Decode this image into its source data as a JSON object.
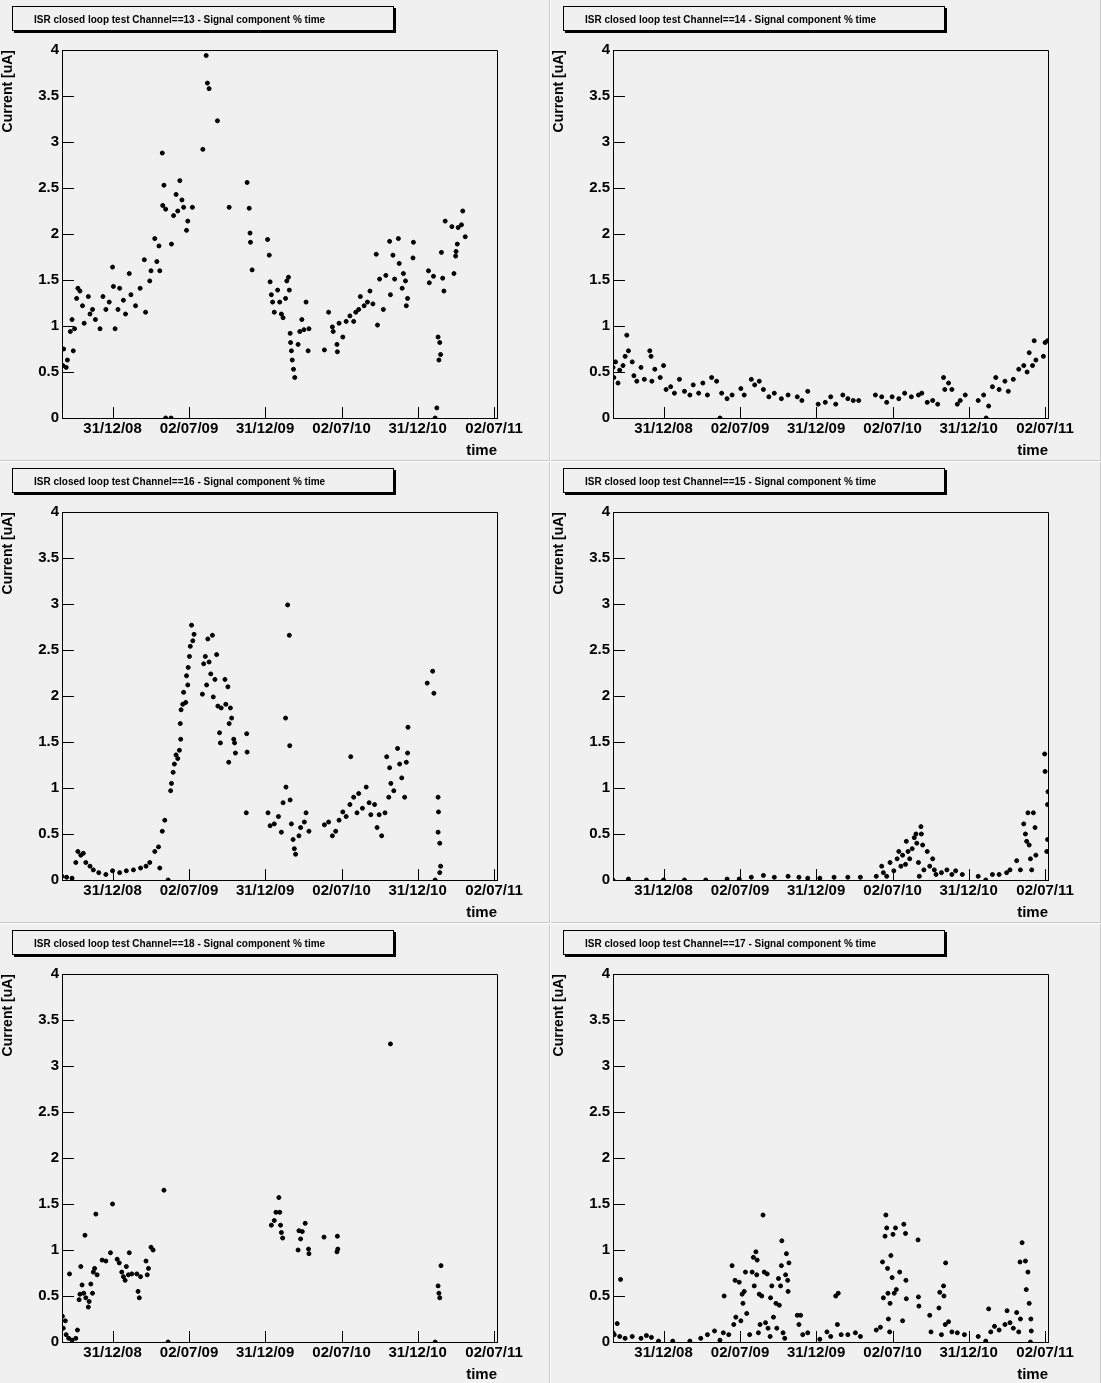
{
  "chart_data": [
    {
      "type": "scatter",
      "title": "ISR closed loop test Channel==13 - Signal component % time",
      "xlabel": "time",
      "ylabel": "Current [uA]",
      "xlim": [
        "2008-09-01",
        "2011-07-09"
      ],
      "ylim": [
        0,
        4
      ],
      "xticks": [
        {
          "value": "2008-12-31",
          "label": "31/12/08"
        },
        {
          "value": "2009-07-02",
          "label": "02/07/09"
        },
        {
          "value": "2009-12-31",
          "label": "31/12/09"
        },
        {
          "value": "2010-07-02",
          "label": "02/07/10"
        },
        {
          "value": "2010-12-31",
          "label": "31/12/10"
        },
        {
          "value": "2011-07-02",
          "label": "02/07/11"
        }
      ],
      "yticks": [
        0,
        0.5,
        1,
        1.5,
        2,
        2.5,
        3,
        3.5,
        4
      ],
      "marker": "circle",
      "color": "#000000",
      "x": [
        "2008-09-03",
        "2008-09-05",
        "2008-09-11",
        "2008-09-14",
        "2008-09-21",
        "2008-09-25",
        "2008-09-28",
        "2008-10-01",
        "2008-10-06",
        "2008-10-09",
        "2008-10-14",
        "2008-10-20",
        "2008-10-24",
        "2008-11-03",
        "2008-11-07",
        "2008-11-13",
        "2008-11-20",
        "2008-12-01",
        "2008-12-08",
        "2008-12-15",
        "2008-12-23",
        "2008-12-31",
        "2009-01-02",
        "2009-01-06",
        "2009-01-13",
        "2009-01-17",
        "2009-01-26",
        "2009-01-31",
        "2009-02-09",
        "2009-02-13",
        "2009-02-24",
        "2009-03-07",
        "2009-03-17",
        "2009-03-20",
        "2009-03-30",
        "2009-04-02",
        "2009-04-11",
        "2009-04-16",
        "2009-04-21",
        "2009-04-23",
        "2009-04-29",
        "2009-04-30",
        "2009-05-03",
        "2009-05-07",
        "2009-05-07",
        "2009-05-20",
        "2009-05-21",
        "2009-05-26",
        "2009-06-01",
        "2009-06-05",
        "2009-06-10",
        "2009-06-15",
        "2009-06-19",
        "2009-06-26",
        "2009-06-29",
        "2009-07-10",
        "2009-08-04",
        "2009-08-12",
        "2009-08-15",
        "2009-08-19",
        "2009-09-08",
        "2009-10-06",
        "2009-11-18",
        "2009-11-23",
        "2009-11-25",
        "2009-11-26",
        "2009-11-30",
        "2010-01-06",
        "2010-01-10",
        "2010-01-12",
        "2010-01-15",
        "2010-01-18",
        "2010-01-22",
        "2010-01-30",
        "2010-02-04",
        "2010-02-08",
        "2010-02-12",
        "2010-02-18",
        "2010-02-21",
        "2010-02-25",
        "2010-02-27",
        "2010-03-01",
        "2010-03-02",
        "2010-03-04",
        "2010-03-06",
        "2010-03-09",
        "2010-03-12",
        "2010-03-20",
        "2010-03-24",
        "2010-03-29",
        "2010-04-03",
        "2010-04-08",
        "2010-04-13",
        "2010-04-15",
        "2010-05-22",
        "2010-06-01",
        "2010-06-10",
        "2010-06-12",
        "2010-06-21",
        "2010-06-22",
        "2010-06-26",
        "2010-07-05",
        "2010-07-13",
        "2010-07-22",
        "2010-07-31",
        "2010-08-05",
        "2010-08-12",
        "2010-08-16",
        "2010-08-25",
        "2010-09-02",
        "2010-09-08",
        "2010-09-15",
        "2010-09-23",
        "2010-09-26",
        "2010-10-01",
        "2010-10-10",
        "2010-10-16",
        "2010-10-25",
        "2010-10-27",
        "2010-11-02",
        "2010-11-06",
        "2010-11-15",
        "2010-11-17",
        "2010-11-24",
        "2010-11-27",
        "2010-12-02",
        "2010-12-04",
        "2010-12-07",
        "2010-12-20",
        "2010-12-21",
        "2011-01-26",
        "2011-01-28",
        "2011-02-07",
        "2011-02-11",
        "2011-02-15",
        "2011-02-18",
        "2011-02-20",
        "2011-02-22",
        "2011-02-24",
        "2011-02-26",
        "2011-03-01",
        "2011-03-04",
        "2011-03-07",
        "2011-03-23",
        "2011-03-28",
        "2011-04-01",
        "2011-04-02",
        "2011-04-05",
        "2011-04-07",
        "2011-04-15",
        "2011-04-18",
        "2011-04-24"
      ],
      "values": [
        0.57,
        0.75,
        0.55,
        0.63,
        0.94,
        1.07,
        0.73,
        0.97,
        1.3,
        1.41,
        1.38,
        1.22,
        1.03,
        1.32,
        1.13,
        1.18,
        1.07,
        0.97,
        1.32,
        1.18,
        1.26,
        1.64,
        1.43,
        0.97,
        1.18,
        1.41,
        1.28,
        1.13,
        1.57,
        1.34,
        1.22,
        1.41,
        1.72,
        1.15,
        1.49,
        1.6,
        1.95,
        1.7,
        1.87,
        1.6,
        2.88,
        2.31,
        2.53,
        2.27,
        0,
        0,
        1.89,
        2.2,
        2.43,
        2.25,
        2.58,
        2.37,
        2.29,
        2.04,
        2.14,
        2.29,
        2.92,
        3.94,
        3.64,
        3.58,
        3.23,
        2.29,
        2.56,
        2.28,
        2.01,
        1.91,
        1.61,
        1.94,
        1.77,
        1.48,
        1.34,
        1.26,
        1.15,
        1.39,
        1.26,
        1.13,
        1.09,
        1.3,
        1.49,
        1.53,
        1.39,
        0.92,
        0.82,
        0.73,
        0.63,
        0.53,
        0.44,
        0.8,
        0.94,
        1.07,
        0.96,
        1.26,
        0.73,
        0.97,
        0.74,
        1.15,
        0.99,
        0.94,
        0.8,
        0.72,
        1.03,
        0.88,
        1.05,
        1.11,
        1.05,
        1.15,
        1.18,
        1.32,
        1.22,
        1.26,
        1.38,
        1.24,
        1.78,
        1.01,
        1.51,
        1.18,
        1.55,
        1.92,
        1.34,
        1.77,
        1.51,
        1.95,
        1.68,
        1.41,
        1.57,
        1.49,
        1.22,
        1.3,
        1.74,
        1.91,
        1.6,
        1.47,
        1.54,
        0,
        0.11,
        0.88,
        0.63,
        0.82,
        0.69,
        1.8,
        1.52,
        1.38,
        2.14,
        2.08,
        1.57,
        1.76,
        1.81,
        1.89,
        2.07,
        2.1,
        2.25,
        1.97
      ]
    },
    {
      "type": "scatter",
      "title": "ISR closed loop test Channel==14 - Signal component % time",
      "xlabel": "time",
      "ylabel": "Current [uA]",
      "xlim": [
        "2008-09-01",
        "2011-07-09"
      ],
      "ylim": [
        0,
        4
      ],
      "xticks": [
        {
          "value": "2008-12-31",
          "label": "31/12/08"
        },
        {
          "value": "2009-07-02",
          "label": "02/07/09"
        },
        {
          "value": "2009-12-31",
          "label": "31/12/09"
        },
        {
          "value": "2010-07-02",
          "label": "02/07/10"
        },
        {
          "value": "2010-12-31",
          "label": "31/12/10"
        },
        {
          "value": "2011-07-02",
          "label": "02/07/11"
        }
      ],
      "yticks": [
        0,
        0.5,
        1,
        1.5,
        2,
        2.5,
        3,
        3.5,
        4
      ],
      "marker": "circle",
      "color": "#000000",
      "x": [
        "2008-09-01",
        "2008-09-03",
        "2008-09-07",
        "2008-09-13",
        "2008-09-17",
        "2008-09-25",
        "2008-09-30",
        "2008-10-04",
        "2008-10-08",
        "2008-10-17",
        "2008-10-21",
        "2008-10-28",
        "2008-11-07",
        "2008-11-15",
        "2008-11-28",
        "2008-12-01",
        "2008-12-03",
        "2008-12-10",
        "2008-12-23",
        "2008-12-31",
        "2009-01-06",
        "2009-01-17",
        "2009-01-26",
        "2009-02-07",
        "2009-02-19",
        "2009-03-04",
        "2009-03-12",
        "2009-03-25",
        "2009-04-04",
        "2009-04-15",
        "2009-04-25",
        "2009-05-07",
        "2009-05-15",
        "2009-05-19",
        "2009-06-01",
        "2009-06-13",
        "2009-07-04",
        "2009-07-12",
        "2009-07-29",
        "2009-08-06",
        "2009-08-17",
        "2009-08-27",
        "2009-09-09",
        "2009-09-22",
        "2009-10-09",
        "2009-10-25",
        "2009-11-16",
        "2009-11-27",
        "2009-12-11",
        "2010-01-05",
        "2010-01-22",
        "2010-02-04",
        "2010-02-16",
        "2010-03-05",
        "2010-03-17",
        "2010-03-30",
        "2010-04-12",
        "2010-05-22",
        "2010-06-06",
        "2010-06-18",
        "2010-07-01",
        "2010-07-17",
        "2010-07-31",
        "2010-08-16",
        "2010-09-02",
        "2010-09-10",
        "2010-09-23",
        "2010-10-06",
        "2010-10-18",
        "2010-11-01",
        "2010-11-04",
        "2010-11-13",
        "2010-11-21",
        "2010-12-04",
        "2010-12-11",
        "2010-12-23",
        "2011-01-23",
        "2011-02-05",
        "2011-02-11",
        "2011-02-17",
        "2011-02-26",
        "2011-03-06",
        "2011-03-14",
        "2011-03-28",
        "2011-04-05",
        "2011-04-17",
        "2011-04-30",
        "2011-05-12",
        "2011-05-20",
        "2011-05-25",
        "2011-06-02",
        "2011-06-06",
        "2011-06-10",
        "2011-06-28",
        "2011-07-02",
        "2011-07-08"
      ],
      "values": [
        0.55,
        0.44,
        0.61,
        0.38,
        0.52,
        0.57,
        0.67,
        0.9,
        0.73,
        0.61,
        0.46,
        0.4,
        0.55,
        0.42,
        0.73,
        0.67,
        0.4,
        0.53,
        0.44,
        0.57,
        0.31,
        0.34,
        0.27,
        0.42,
        0.29,
        0.25,
        0.36,
        0.27,
        0.38,
        0.25,
        0.44,
        0.4,
        0,
        0.27,
        0.21,
        0.25,
        0.32,
        0.25,
        0.42,
        0.36,
        0.4,
        0.31,
        0.23,
        0.27,
        0.21,
        0.25,
        0.23,
        0.19,
        0.29,
        0.15,
        0.17,
        0.23,
        0.15,
        0.25,
        0.21,
        0.19,
        0.19,
        0.25,
        0.23,
        0.17,
        0.23,
        0.21,
        0.27,
        0.23,
        0.25,
        0.27,
        0.17,
        0.19,
        0.15,
        0.44,
        0.31,
        0.38,
        0.31,
        0.15,
        0.19,
        0.25,
        0.19,
        0.25,
        0,
        0.13,
        0.34,
        0.44,
        0.31,
        0.4,
        0.29,
        0.42,
        0.53,
        0.57,
        0.5,
        0.71,
        0.57,
        0.84,
        0.63,
        0.67,
        0.82,
        0.84
      ]
    },
    {
      "type": "scatter",
      "title": "ISR closed loop test Channel==16 - Signal component % time",
      "xlabel": "time",
      "ylabel": "Current [uA]",
      "xlim": [
        "2008-09-01",
        "2011-07-09"
      ],
      "ylim": [
        0,
        4
      ],
      "xticks": [
        {
          "value": "2008-12-31",
          "label": "31/12/08"
        },
        {
          "value": "2009-07-02",
          "label": "02/07/09"
        },
        {
          "value": "2009-12-31",
          "label": "31/12/09"
        },
        {
          "value": "2010-07-02",
          "label": "02/07/10"
        },
        {
          "value": "2010-12-31",
          "label": "31/12/10"
        },
        {
          "value": "2011-07-02",
          "label": "02/07/11"
        }
      ],
      "yticks": [
        0,
        0.5,
        1,
        1.5,
        2,
        2.5,
        3,
        3.5,
        4
      ],
      "marker": "circle",
      "color": "#000000",
      "x": [
        "2008-09-01",
        "2008-09-12",
        "2008-09-25",
        "2008-10-04",
        "2008-10-09",
        "2008-10-16",
        "2008-10-22",
        "2008-10-28",
        "2008-11-07",
        "2008-11-15",
        "2008-11-28",
        "2008-12-15",
        "2008-12-31",
        "2009-01-17",
        "2009-02-02",
        "2009-02-19",
        "2009-03-08",
        "2009-03-21",
        "2009-03-30",
        "2009-04-11",
        "2009-04-20",
        "2009-04-23",
        "2009-04-29",
        "2009-05-05",
        "2009-05-13",
        "2009-05-19",
        "2009-05-21",
        "2009-05-25",
        "2009-05-28",
        "2009-06-01",
        "2009-06-05",
        "2009-06-09",
        "2009-06-12",
        "2009-06-11",
        "2009-06-13",
        "2009-06-17",
        "2009-06-19",
        "2009-06-24",
        "2009-06-26",
        "2009-06-29",
        "2009-06-30",
        "2009-07-03",
        "2009-07-05",
        "2009-07-08",
        "2009-07-11",
        "2009-07-14",
        "2009-08-03",
        "2009-08-06",
        "2009-08-10",
        "2009-08-13",
        "2009-08-16",
        "2009-08-19",
        "2009-08-23",
        "2009-08-27",
        "2009-08-29",
        "2009-09-02",
        "2009-09-06",
        "2009-09-09",
        "2009-09-13",
        "2009-09-15",
        "2009-09-17",
        "2009-09-26",
        "2009-09-28",
        "2009-10-03",
        "2009-10-05",
        "2009-10-06",
        "2009-10-09",
        "2009-10-12",
        "2009-10-17",
        "2009-10-19",
        "2009-10-21",
        "2009-11-17",
        "2009-11-18",
        "2009-11-16",
        "2010-01-07",
        "2010-01-12",
        "2010-01-22",
        "2010-02-01",
        "2010-02-08",
        "2010-02-12",
        "2010-02-18",
        "2010-02-23",
        "2010-02-27",
        "2010-02-28",
        "2010-02-19",
        "2010-03-01",
        "2010-03-04",
        "2010-03-08",
        "2010-03-11",
        "2010-03-14",
        "2010-03-22",
        "2010-03-26",
        "2010-04-04",
        "2010-04-08",
        "2010-04-15",
        "2010-05-22",
        "2010-06-01",
        "2010-06-10",
        "2010-06-18",
        "2010-06-26",
        "2010-07-05",
        "2010-07-13",
        "2010-07-22",
        "2010-07-24",
        "2010-07-31",
        "2010-08-08",
        "2010-08-12",
        "2010-08-21",
        "2010-08-30",
        "2010-09-06",
        "2010-09-10",
        "2010-09-19",
        "2010-09-25",
        "2010-09-30",
        "2010-10-06",
        "2010-10-14",
        "2010-10-18",
        "2010-10-23",
        "2010-10-25",
        "2010-10-28",
        "2010-11-04",
        "2010-11-13",
        "2010-11-18",
        "2010-11-23",
        "2010-11-30",
        "2010-12-04",
        "2010-12-07",
        "2010-12-08",
        "2011-01-23",
        "2011-02-05",
        "2011-02-08",
        "2011-02-11",
        "2011-02-18",
        "2011-02-19",
        "2011-02-18",
        "2011-02-22",
        "2011-02-24",
        "2011-02-22"
      ],
      "values": [
        0.04,
        0.03,
        0.02,
        0.19,
        0.31,
        0.27,
        0.29,
        0.19,
        0.15,
        0.11,
        0.08,
        0.06,
        0.1,
        0.08,
        0.1,
        0.11,
        0.13,
        0.15,
        0.19,
        0.31,
        0.36,
        0.13,
        0.53,
        0.65,
        0,
        0.97,
        1.05,
        1.17,
        1.26,
        1.36,
        1.32,
        1.41,
        1.53,
        1.7,
        1.85,
        1.91,
        2.04,
        1.93,
        2.22,
        2.12,
        2.31,
        2.43,
        2.54,
        2.77,
        2.6,
        2.67,
        2.02,
        2.35,
        2.43,
        2.12,
        2.62,
        2.37,
        2.24,
        2.66,
        1.99,
        2.18,
        2.45,
        1.89,
        1.6,
        1.49,
        1.87,
        2.18,
        1.91,
        2.1,
        1.28,
        1.7,
        1.87,
        1.76,
        1.53,
        1.49,
        1.38,
        1.59,
        1.39,
        0.73,
        0.73,
        0.59,
        0.61,
        0.69,
        0.52,
        0.84,
        1.76,
        2.99,
        2.66,
        1.46,
        1.01,
        0.87,
        0.61,
        0.44,
        0.34,
        0.28,
        0.48,
        0.57,
        0.63,
        0.73,
        0.53,
        0.6,
        0.63,
        0.48,
        0.53,
        0.65,
        0.74,
        0.69,
        0.82,
        1.34,
        0.9,
        0.73,
        0.94,
        0.78,
        1.01,
        0.84,
        0.71,
        0.82,
        0.57,
        0.71,
        0.48,
        0.73,
        1.34,
        0.9,
        1.22,
        1.05,
        0.97,
        1.43,
        1.26,
        1.11,
        0.9,
        1.28,
        1.38,
        1.66,
        2.14,
        2.27,
        2.03,
        0,
        0.9,
        0.74,
        0.52,
        0.4,
        0.15,
        0.08
      ]
    },
    {
      "type": "scatter",
      "title": "ISR closed loop test Channel==15 - Signal component % time",
      "xlabel": "time",
      "ylabel": "Current [uA]",
      "xlim": [
        "2008-09-01",
        "2011-07-09"
      ],
      "ylim": [
        0,
        4
      ],
      "xticks": [
        {
          "value": "2008-12-31",
          "label": "31/12/08"
        },
        {
          "value": "2009-07-02",
          "label": "02/07/09"
        },
        {
          "value": "2009-12-31",
          "label": "31/12/09"
        },
        {
          "value": "2010-07-02",
          "label": "02/07/10"
        },
        {
          "value": "2010-12-31",
          "label": "31/12/10"
        },
        {
          "value": "2011-07-02",
          "label": "02/07/11"
        }
      ],
      "yticks": [
        0,
        0.5,
        1,
        1.5,
        2,
        2.5,
        3,
        3.5,
        4
      ],
      "marker": "circle",
      "color": "#000000",
      "x": [
        "2008-09-01",
        "2008-10-08",
        "2008-11-20",
        "2008-12-31",
        "2009-02-19",
        "2009-04-11",
        "2009-06-01",
        "2009-06-30",
        "2009-07-29",
        "2009-08-27",
        "2009-09-22",
        "2009-10-25",
        "2009-11-20",
        "2009-12-11",
        "2010-01-09",
        "2010-02-12",
        "2010-03-17",
        "2010-04-16",
        "2010-05-24",
        "2010-06-06",
        "2010-06-10",
        "2010-06-18",
        "2010-06-26",
        "2010-07-05",
        "2010-07-13",
        "2010-07-17",
        "2010-07-22",
        "2010-07-26",
        "2010-08-02",
        "2010-08-04",
        "2010-08-08",
        "2010-08-12",
        "2010-08-18",
        "2010-08-23",
        "2010-08-27",
        "2010-08-29",
        "2010-09-02",
        "2010-09-04",
        "2010-09-08",
        "2010-09-09",
        "2010-09-12",
        "2010-09-15",
        "2010-09-23",
        "2010-09-29",
        "2010-10-06",
        "2010-10-10",
        "2010-10-14",
        "2010-10-27",
        "2010-11-09",
        "2010-11-21",
        "2010-11-30",
        "2010-12-16",
        "2011-01-23",
        "2011-02-10",
        "2011-02-26",
        "2011-03-14",
        "2011-04-01",
        "2011-04-09",
        "2011-04-25",
        "2011-05-04",
        "2011-05-12",
        "2011-05-16",
        "2011-05-19",
        "2011-05-22",
        "2011-05-25",
        "2011-05-28",
        "2011-05-31",
        "2011-06-04",
        "2011-06-08",
        "2011-06-10",
        "2011-07-01",
        "2011-07-02",
        "2011-07-06",
        "2011-07-08",
        "2011-07-09",
        "2011-07-08"
      ],
      "values": [
        0.0,
        0.01,
        0.0,
        0.0,
        0.0,
        0.0,
        0.01,
        0.01,
        0.03,
        0.05,
        0.03,
        0.04,
        0.03,
        0.02,
        0.02,
        0.03,
        0.03,
        0.03,
        0.04,
        0.15,
        0.08,
        0.04,
        0.19,
        0.1,
        0.23,
        0.31,
        0.15,
        0.27,
        0.17,
        0.42,
        0.31,
        0.23,
        0.34,
        0.46,
        0.5,
        0.4,
        0.19,
        0.04,
        0.58,
        0.5,
        0.38,
        0.11,
        0.31,
        0.15,
        0.23,
        0.11,
        0.06,
        0.08,
        0.11,
        0.06,
        0.1,
        0.06,
        0.04,
        0.0,
        0.06,
        0.06,
        0.08,
        0.11,
        0.21,
        0.11,
        0.61,
        0.5,
        0.42,
        0.73,
        0.38,
        0.23,
        0.11,
        0.73,
        0.57,
        0.27,
        1.37,
        1.18,
        0.31,
        0.44,
        0.96,
        0.82
      ]
    },
    {
      "type": "scatter",
      "title": "ISR closed loop test Channel==18 - Signal component % time",
      "xlabel": "time",
      "ylabel": "Current [uA]",
      "xlim": [
        "2008-09-01",
        "2011-07-09"
      ],
      "ylim": [
        0,
        4
      ],
      "xticks": [
        {
          "value": "2008-12-31",
          "label": "31/12/08"
        },
        {
          "value": "2009-07-02",
          "label": "02/07/09"
        },
        {
          "value": "2009-12-31",
          "label": "31/12/09"
        },
        {
          "value": "2010-07-02",
          "label": "02/07/10"
        },
        {
          "value": "2010-12-31",
          "label": "31/12/10"
        },
        {
          "value": "2011-07-02",
          "label": "02/07/11"
        }
      ],
      "yticks": [
        0,
        0.5,
        1,
        1.5,
        2,
        2.5,
        3,
        3.5,
        4
      ],
      "marker": "circle",
      "color": "#000000",
      "x": [
        "2008-09-02",
        "2008-09-04",
        "2008-09-09",
        "2008-09-11",
        "2008-09-17",
        "2008-09-25",
        "2008-10-04",
        "2008-10-08",
        "2008-09-19",
        "2008-10-12",
        "2008-10-14",
        "2008-10-16",
        "2008-10-19",
        "2008-10-23",
        "2008-10-26",
        "2008-10-28",
        "2008-11-03",
        "2008-11-05",
        "2008-11-09",
        "2008-11-13",
        "2008-11-15",
        "2008-11-18",
        "2008-11-21",
        "2008-11-24",
        "2008-12-06",
        "2008-12-15",
        "2008-12-26",
        "2008-12-31",
        "2009-01-11",
        "2009-01-16",
        "2009-01-22",
        "2009-01-26",
        "2009-01-30",
        "2009-02-02",
        "2009-02-07",
        "2009-02-09",
        "2009-02-15",
        "2009-02-27",
        "2009-03-02",
        "2009-03-05",
        "2009-03-08",
        "2009-03-21",
        "2009-03-24",
        "2009-03-27",
        "2009-04-02",
        "2009-04-07",
        "2009-05-03",
        "2009-05-13",
        "2010-01-15",
        "2010-01-22",
        "2010-01-26",
        "2010-02-02",
        "2010-02-04",
        "2010-02-06",
        "2010-02-08",
        "2010-02-11",
        "2010-03-20",
        "2010-03-22",
        "2010-03-26",
        "2010-03-30",
        "2010-04-06",
        "2010-04-14",
        "2010-04-15",
        "2010-05-21",
        "2010-06-22",
        "2010-06-21",
        "2010-06-23",
        "2010-10-27",
        "2011-02-11",
        "2011-02-18",
        "2011-02-20",
        "2011-02-22",
        "2011-02-25"
      ],
      "values": [
        0.28,
        0.15,
        0.23,
        0.08,
        0.04,
        0.02,
        0.04,
        0.13,
        0.74,
        0.46,
        0.52,
        0.82,
        0.62,
        0.53,
        1.16,
        0.48,
        0.38,
        0.44,
        0.63,
        0.53,
        0.76,
        0.8,
        1.39,
        0.73,
        0.89,
        0.88,
        0.97,
        1.5,
        0.9,
        0.86,
        0.76,
        0.71,
        0.67,
        0.82,
        0.73,
        0.97,
        0.74,
        0.74,
        0.55,
        0.48,
        0.71,
        0.88,
        0.73,
        0.8,
        1.03,
        1.0,
        1.65,
        0,
        1.27,
        1.32,
        1.41,
        1.57,
        1.41,
        1.27,
        1.19,
        1.13,
        1.0,
        1.21,
        1.12,
        1.2,
        1.29,
        1.01,
        0.96,
        1.14,
        1.15,
        0.98,
        1.01,
        3.24,
        0,
        0.61,
        0.53,
        0.48,
        0.83
      ]
    },
    {
      "type": "scatter",
      "title": "ISR closed loop test Channel==17 - Signal component % time",
      "xlabel": "time",
      "ylabel": "Current [uA]",
      "xlim": [
        "2008-09-01",
        "2011-07-09"
      ],
      "ylim": [
        0,
        4
      ],
      "xticks": [
        {
          "value": "2008-12-31",
          "label": "31/12/08"
        },
        {
          "value": "2009-07-02",
          "label": "02/07/09"
        },
        {
          "value": "2009-12-31",
          "label": "31/12/09"
        },
        {
          "value": "2010-07-02",
          "label": "02/07/10"
        },
        {
          "value": "2010-12-31",
          "label": "31/12/10"
        },
        {
          "value": "2011-07-02",
          "label": "02/07/11"
        }
      ],
      "yticks": [
        0,
        0.5,
        1,
        1.5,
        2,
        2.5,
        3,
        3.5,
        4
      ],
      "marker": "circle",
      "color": "#000000",
      "x": [
        "2008-09-01",
        "2008-09-04",
        "2008-09-11",
        "2008-09-19",
        "2008-09-17",
        "2008-09-30",
        "2008-10-17",
        "2008-11-07",
        "2008-11-20",
        "2008-12-02",
        "2008-12-19",
        "2009-01-22",
        "2009-03-04",
        "2009-03-30",
        "2009-04-15",
        "2009-05-02",
        "2009-05-15",
        "2009-05-23",
        "2009-05-25",
        "2009-06-05",
        "2009-06-13",
        "2009-06-17",
        "2009-06-20",
        "2009-06-22",
        "2009-06-30",
        "2009-07-04",
        "2009-07-07",
        "2009-07-09",
        "2009-07-12",
        "2009-07-15",
        "2009-07-18",
        "2009-07-25",
        "2009-07-31",
        "2009-08-03",
        "2009-08-05",
        "2009-08-09",
        "2009-08-11",
        "2009-08-12",
        "2009-08-15",
        "2009-08-17",
        "2009-08-19",
        "2009-08-23",
        "2009-08-26",
        "2009-08-29",
        "2009-09-01",
        "2009-09-05",
        "2009-09-07",
        "2009-09-12",
        "2009-09-13",
        "2009-09-16",
        "2009-09-20",
        "2009-09-26",
        "2009-09-28",
        "2009-10-02",
        "2009-10-04",
        "2009-10-07",
        "2009-10-09",
        "2009-10-10",
        "2009-10-13",
        "2009-10-17",
        "2009-10-19",
        "2009-10-21",
        "2009-10-24",
        "2009-10-25",
        "2009-10-27",
        "2009-11-16",
        "2009-11-20",
        "2009-11-24",
        "2009-11-29",
        "2009-12-11",
        "2010-01-09",
        "2010-01-26",
        "2010-02-04",
        "2010-02-16",
        "2010-02-22",
        "2010-02-20",
        "2010-03-01",
        "2010-03-17",
        "2010-04-04",
        "2010-04-16",
        "2010-05-24",
        "2010-06-03",
        "2010-06-08",
        "2010-06-10",
        "2010-06-14",
        "2010-06-16",
        "2010-06-18",
        "2010-06-20",
        "2010-06-21",
        "2010-06-22",
        "2010-06-25",
        "2010-06-26",
        "2010-06-28",
        "2010-07-01",
        "2010-07-03",
        "2010-07-06",
        "2010-07-09",
        "2010-07-11",
        "2010-07-19",
        "2010-07-26",
        "2010-07-29",
        "2010-08-02",
        "2010-08-03",
        "2010-08-04",
        "2010-09-01",
        "2010-09-02",
        "2010-09-03",
        "2010-09-29",
        "2010-10-02",
        "2010-10-21",
        "2010-10-23",
        "2010-10-27",
        "2010-11-01",
        "2010-11-02",
        "2010-11-06",
        "2010-11-05",
        "2010-11-13",
        "2010-11-21",
        "2010-12-04",
        "2010-12-21",
        "2011-01-23",
        "2011-02-10",
        "2011-02-17",
        "2011-02-22",
        "2011-03-03",
        "2011-03-14",
        "2011-03-28",
        "2011-04-02",
        "2011-04-09",
        "2011-04-17",
        "2011-04-25",
        "2011-04-30",
        "2011-05-03",
        "2011-05-04",
        "2011-05-08",
        "2011-05-16",
        "2011-05-18",
        "2011-05-22",
        "2011-05-25",
        "2011-05-28",
        "2011-05-29",
        "2011-05-30"
      ],
      "values": [
        0.1,
        0.08,
        0.2,
        0.68,
        0.06,
        0.04,
        0.06,
        0.04,
        0.07,
        0.05,
        0.01,
        0.01,
        0.01,
        0.04,
        0.08,
        0.12,
        0.02,
        0.1,
        0.5,
        0.08,
        0.83,
        0.19,
        0.67,
        0.27,
        0.65,
        0.23,
        0.52,
        0.42,
        0.55,
        0.76,
        0.31,
        0.08,
        0.76,
        0.92,
        0.61,
        0.98,
        0.73,
        0.89,
        0.1,
        0.52,
        0.19,
        0.5,
        1.38,
        0.76,
        0.21,
        0.74,
        0.15,
        0.06,
        0.48,
        0.61,
        0.27,
        0.42,
        0.15,
        0.69,
        0.4,
        0.61,
        0.83,
        1.1,
        0.1,
        0.04,
        0.73,
        0.96,
        0.67,
        0.55,
        0.86,
        0.29,
        0.19,
        0.29,
        0.08,
        0.1,
        0.03,
        0.11,
        0.06,
        0.5,
        0.53,
        0.19,
        0.08,
        0.08,
        0.1,
        0.06,
        0.13,
        0.16,
        0.87,
        0.48,
        1.15,
        1.38,
        1.24,
        0.8,
        0.53,
        0.25,
        0.11,
        0.42,
        0.94,
        0.7,
        1.17,
        0.53,
        1.24,
        0.57,
        0.76,
        0.23,
        1.28,
        1.18,
        0.67,
        0.47,
        1.11,
        0.49,
        0.39,
        0.29,
        0.11,
        0.37,
        0.54,
        0.08,
        0.61,
        0.5,
        0.86,
        0.19,
        0.22,
        0.11,
        0.1,
        0.08,
        0.06,
        0.01,
        0.36,
        0.11,
        0.17,
        0.13,
        0.19,
        0.34,
        0.21,
        0.15,
        0.32,
        0.11,
        0.87,
        0.25,
        1.08,
        0.88,
        0.57,
        0.76,
        0.42,
        0.0,
        0.25,
        0.12
      ]
    }
  ]
}
